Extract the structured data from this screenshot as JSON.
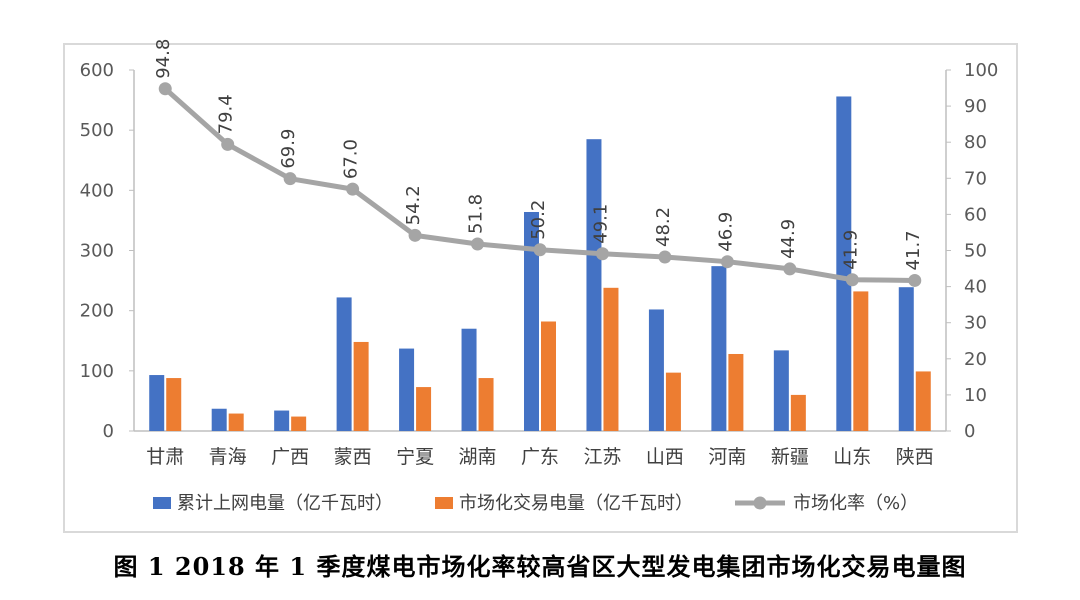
{
  "caption": "图 1 2018 年 1 季度煤电市场化率较高省区大型发电集团市场化交易电量图",
  "colors": {
    "series1": "#4472c4",
    "series2": "#ed7d31",
    "series3": "#a5a5a5",
    "axis": "#bfbfbf",
    "text": "#595959"
  },
  "chart_data": {
    "type": "bar",
    "categories": [
      "甘肃",
      "青海",
      "广西",
      "蒙西",
      "宁夏",
      "湖南",
      "广东",
      "江苏",
      "山西",
      "河南",
      "新疆",
      "山东",
      "陕西"
    ],
    "series": [
      {
        "name": "累计上网电量（亿千瓦时）",
        "type": "bar",
        "axis": "left",
        "values": [
          93,
          37,
          34,
          222,
          137,
          170,
          364,
          485,
          202,
          274,
          134,
          556,
          239
        ]
      },
      {
        "name": "市场化交易电量（亿千瓦时）",
        "type": "bar",
        "axis": "left",
        "values": [
          88,
          29,
          24,
          148,
          73,
          88,
          182,
          238,
          97,
          128,
          60,
          232,
          99
        ]
      },
      {
        "name": "市场化率（%）",
        "type": "line",
        "axis": "right",
        "values": [
          94.8,
          79.4,
          69.9,
          67.0,
          54.2,
          51.8,
          50.2,
          49.1,
          48.2,
          46.9,
          44.9,
          41.9,
          41.7
        ],
        "labels": [
          "94.8",
          "79.4",
          "69.9",
          "67.0",
          "54.2",
          "51.8",
          "50.2",
          "49.1",
          "48.2",
          "46.9",
          "44.9",
          "41.9",
          "41.7"
        ]
      }
    ],
    "y_left": {
      "ylim": [
        0,
        600
      ],
      "ticks": [
        "0",
        "100",
        "200",
        "300",
        "400",
        "500",
        "600"
      ]
    },
    "y_right": {
      "ylim": [
        0,
        100
      ],
      "ticks": [
        "0",
        "10",
        "20",
        "30",
        "40",
        "50",
        "60",
        "70",
        "80",
        "90",
        "100"
      ]
    },
    "grid": false,
    "legend_position": "bottom"
  }
}
